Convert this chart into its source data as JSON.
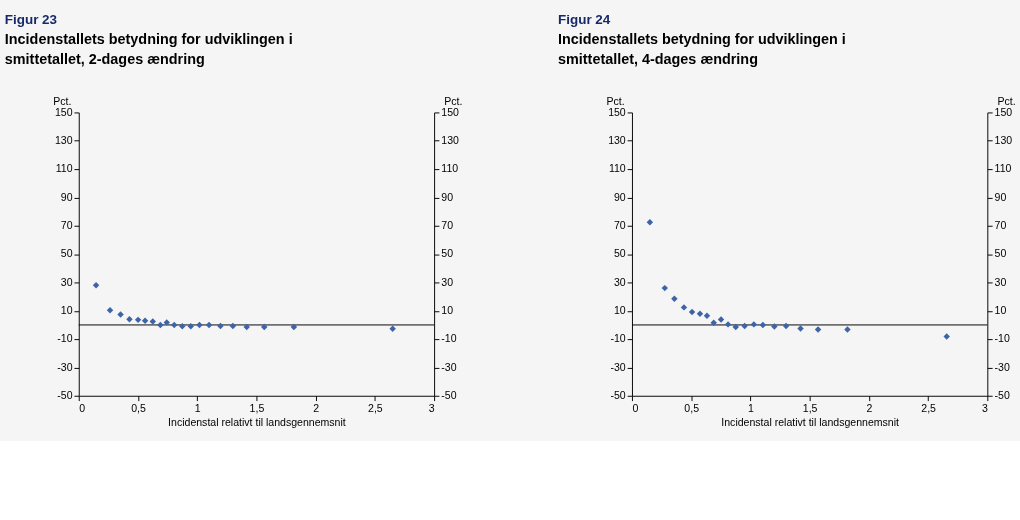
{
  "chart_data": [
    {
      "type": "scatter",
      "title": "Figur 23",
      "subtitle": "Incidenstallets betydning for udviklingen i smittetallet, 2-dages ændring",
      "xlabel": "Incidenstal  relativt  til landsgennemsnit",
      "ylabel": "Pct.",
      "y2label": "Pct.",
      "marker": "diamond",
      "grid": false,
      "series": [
        {
          "color": "#3d64a8",
          "x": [
            0.146,
            0.264,
            0.353,
            0.428,
            0.501,
            0.56,
            0.625,
            0.689,
            0.743,
            0.806,
            0.874,
            0.946,
            1.019,
            1.1,
            1.196,
            1.301,
            1.418,
            1.566,
            1.816,
            2.65
          ],
          "values": [
            28,
            10.4,
            7.4,
            4,
            3.6,
            2.9,
            2.5,
            0,
            1.8,
            0,
            -0.9,
            -0.9,
            0,
            0,
            -0.7,
            -0.7,
            -1.4,
            -1.4,
            -1.4,
            -2.7
          ]
        }
      ],
      "xlim": [
        0,
        3
      ],
      "xticks": [
        0,
        {
          "value": 0.5,
          "label": "0,5"
        },
        1,
        {
          "value": 1.5,
          "label": "1,5"
        },
        2,
        {
          "value": 2.5,
          "label": "2,5"
        },
        3
      ],
      "ylim": [
        -50,
        150
      ],
      "yticks": [
        -50,
        -30,
        -10,
        10,
        30,
        50,
        70,
        90,
        110,
        130,
        150
      ],
      "y2lim": [
        -50,
        150
      ],
      "y2ticks": [
        -50,
        -30,
        -10,
        10,
        30,
        50,
        70,
        90,
        110,
        130,
        150
      ],
      "ref_lines": [
        {
          "axis": "y",
          "value": 0,
          "color": "#000000"
        }
      ]
    },
    {
      "type": "scatter",
      "title": "Figur 24",
      "subtitle": "Incidenstallets betydning for udviklingen i smittetallet, 4-dages ændring",
      "xlabel": "Incidenstal  relativt  til landsgennemsnit",
      "ylabel": "Pct.",
      "y2label": "Pct.",
      "marker": "diamond",
      "grid": false,
      "series": [
        {
          "color": "#3d64a8",
          "x": [
            0.151,
            0.277,
            0.358,
            0.439,
            0.507,
            0.574,
            0.633,
            0.69,
            0.752,
            0.811,
            0.876,
            0.951,
            1.029,
            1.105,
            1.202,
            1.301,
            1.423,
            1.571,
            1.819,
            2.657
          ],
          "values": [
            72.5,
            26,
            18.5,
            12.4,
            9.2,
            7.9,
            6.5,
            1.6,
            3.8,
            0.4,
            -1.4,
            -0.7,
            0.4,
            0,
            -1.1,
            -0.7,
            -2.5,
            -3.2,
            -3.2,
            -8.1
          ]
        }
      ],
      "xlim": [
        0,
        3
      ],
      "xticks": [
        0,
        {
          "value": 0.5,
          "label": "0,5"
        },
        1,
        {
          "value": 1.5,
          "label": "1,5"
        },
        2,
        {
          "value": 2.5,
          "label": "2,5"
        },
        3
      ],
      "ylim": [
        -50,
        150
      ],
      "yticks": [
        -50,
        -30,
        -10,
        10,
        30,
        50,
        70,
        90,
        110,
        130,
        150
      ],
      "y2lim": [
        -50,
        150
      ],
      "y2ticks": [
        -50,
        -30,
        -10,
        10,
        30,
        50,
        70,
        90,
        110,
        130,
        150
      ],
      "ref_lines": [
        {
          "axis": "y",
          "value": 0,
          "color": "#000000"
        }
      ]
    }
  ]
}
